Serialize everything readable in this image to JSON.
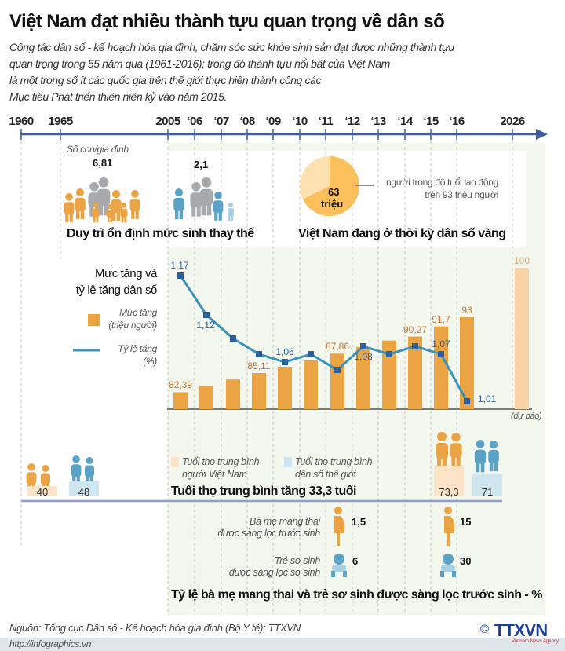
{
  "title": "Việt Nam đạt nhiều thành tựu quan trọng về dân số",
  "subtitle": [
    "Công tác dân số - kế hoạch hóa gia đình, chăm sóc sức khỏe sinh sản đạt được những thành tựu",
    "quan trọng trong 55 năm qua (1961-2016); trong đó thành tựu nổi bật của Việt Nam",
    "là một trong số ít các quốc gia trên thế giới thực hiện thành công các",
    "Mục tiêu Phát triển thiên niên kỷ vào năm 2015."
  ],
  "timeline": [
    "1960",
    "1965",
    "2005",
    "‘06",
    "‘07",
    "‘08",
    "‘09",
    "‘10",
    "‘11",
    "‘12",
    "‘13",
    "‘14",
    "‘15",
    "‘16",
    "2026"
  ],
  "fertility": {
    "label": "Số con/gia đình",
    "before": "6,81",
    "after": "2,1",
    "heading": "Duy trì ổn định mức sinh thay thế"
  },
  "golden": {
    "pie_value": "63",
    "pie_unit": "triệu",
    "note": [
      "người trong độ tuổi lao động",
      "trên 93 triệu người"
    ],
    "heading": "Việt Nam đang ở thời kỳ dân số vàng",
    "pie_fraction": 0.677
  },
  "chart_data": {
    "type": "bar+line",
    "title": [
      "Mức tăng và",
      "tỷ lệ tăng dân số"
    ],
    "categories": [
      "2005",
      "2006",
      "2007",
      "2008",
      "2009",
      "2010",
      "2011",
      "2012",
      "2013",
      "2014",
      "2015",
      "2016",
      "2026"
    ],
    "series": [
      {
        "name": "Mức tăng (triệu người)",
        "type": "bar",
        "values": [
          82.39,
          83.3,
          84.2,
          85.11,
          86.0,
          86.9,
          87.86,
          88.8,
          89.7,
          90.27,
          91.7,
          93,
          100
        ],
        "labels": [
          "82,39",
          null,
          null,
          "85,11",
          null,
          null,
          "87,86",
          null,
          null,
          "90,27",
          "91,7",
          "93",
          "100"
        ],
        "color": "#eba444",
        "forecast_color": "#f8d3a6"
      },
      {
        "name": "Tỷ lệ tăng (%)",
        "type": "line",
        "values": [
          1.17,
          1.12,
          1.09,
          1.07,
          1.06,
          1.07,
          1.05,
          1.08,
          1.07,
          1.08,
          1.07,
          1.01,
          null
        ],
        "labels": [
          "1,17",
          "1,12",
          null,
          null,
          "1,06",
          null,
          null,
          "1,08",
          null,
          null,
          "1,07",
          "1,01",
          null
        ],
        "color": "#3a93b8",
        "marker_color": "#2c5f9e"
      }
    ],
    "legend": {
      "bar": [
        "Mức tăng",
        "(triệu người)"
      ],
      "line": [
        "Tỷ lệ tăng",
        "(%)"
      ]
    },
    "forecast_note": "(dự báo)",
    "grid": "vertical-dashed"
  },
  "life": {
    "legend_vn": [
      "Tuổi thọ trung bình",
      "người Việt Nam"
    ],
    "legend_world": [
      "Tuổi thọ trung bình",
      "dân số thế giới"
    ],
    "vn_1960": "40",
    "world_1960": "48",
    "vn_2016": "73,3",
    "world_2016": "71",
    "heading": "Tuổi thọ trung bình tăng 33,3 tuổi",
    "vn_color": "#fde3c8",
    "world_color": "#cde6f0"
  },
  "screening": {
    "mothers_label": [
      "Bà mẹ mang thai",
      "được sàng lọc trước sinh"
    ],
    "mothers_2005": "1,5",
    "mothers_2016": "15",
    "babies_label": [
      "Trẻ sơ sinh",
      "được sàng lọc sơ sinh"
    ],
    "babies_2005": "6",
    "babies_2016": "30",
    "heading": "Tỷ lệ bà mẹ mang thai và trẻ sơ sinh được sàng lọc trước sinh - %"
  },
  "footer": {
    "source": "Nguồn: Tổng cục Dân số - Kế hoạch hóa gia đình (Bộ Y tế); TTXVN",
    "url": "http://infographics.vn",
    "logo": "TTXVN",
    "logo_sub": "Vietnam News Agency"
  }
}
